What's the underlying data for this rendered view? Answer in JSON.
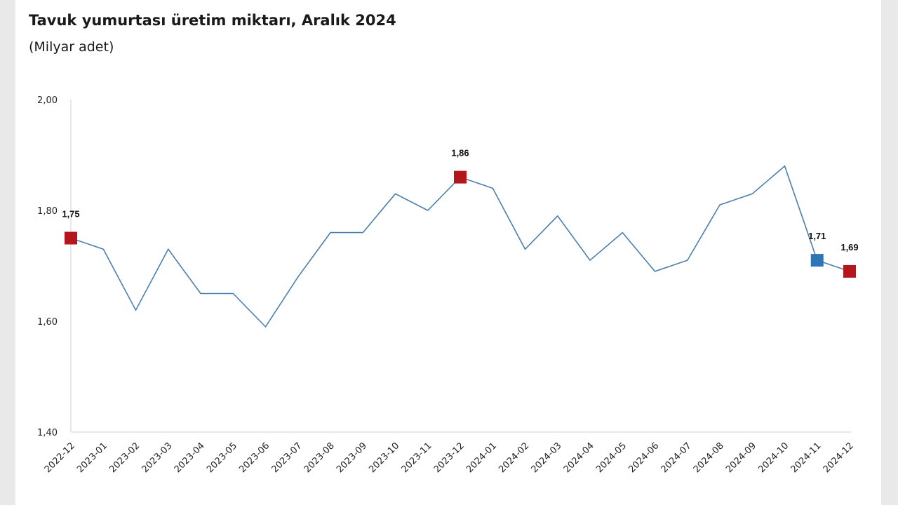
{
  "chart": {
    "title": "Tavuk yumurtası üretim miktarı, Aralık 2024",
    "subtitle": "(Milyar adet)"
  },
  "chart_data": {
    "type": "line",
    "title": "Tavuk yumurtası üretim miktarı, Aralık 2024",
    "subtitle": "(Milyar adet)",
    "xlabel": "",
    "ylabel": "",
    "ylim": [
      1.4,
      2.0
    ],
    "yticks": [
      "1,40",
      "1,60",
      "1,80",
      "2,00"
    ],
    "grid": false,
    "categories": [
      "2022-12",
      "2023-01",
      "2023-02",
      "2023-03",
      "2023-04",
      "2023-05",
      "2023-06",
      "2023-07",
      "2023-08",
      "2023-09",
      "2023-10",
      "2023-11",
      "2023-12",
      "2024-01",
      "2024-02",
      "2024-03",
      "2024-04",
      "2024-05",
      "2024-06",
      "2024-07",
      "2024-08",
      "2024-09",
      "2024-10",
      "2024-11",
      "2024-12"
    ],
    "series": [
      {
        "values": [
          1.75,
          1.73,
          1.62,
          1.73,
          1.65,
          1.65,
          1.59,
          1.68,
          1.76,
          1.76,
          1.83,
          1.8,
          1.86,
          1.84,
          1.73,
          1.79,
          1.71,
          1.76,
          1.69,
          1.71,
          1.81,
          1.83,
          1.88,
          1.71,
          1.69
        ],
        "color": "#4a7fad"
      }
    ],
    "highlights": [
      {
        "index": 0,
        "label": "1,75",
        "color": "#b5161c"
      },
      {
        "index": 12,
        "label": "1,86",
        "color": "#b5161c"
      },
      {
        "index": 23,
        "label": "1,71",
        "color": "#2e75b6"
      },
      {
        "index": 24,
        "label": "1,69",
        "color": "#b5161c"
      }
    ]
  }
}
